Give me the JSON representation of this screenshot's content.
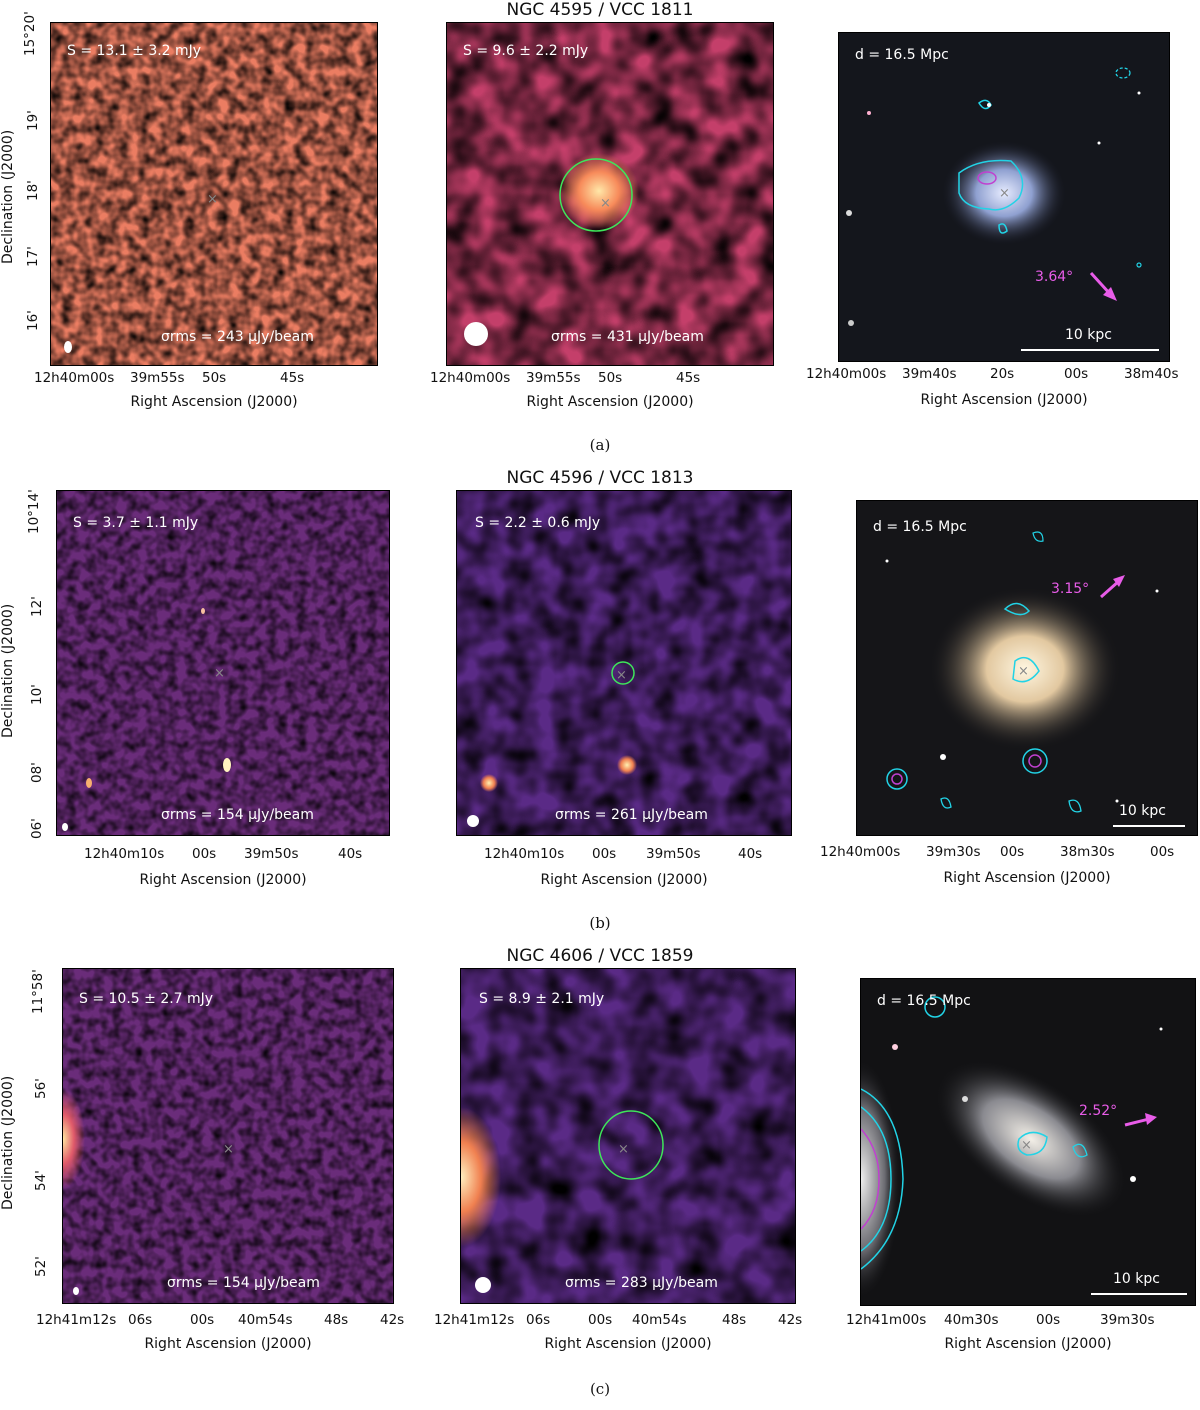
{
  "rows": [
    {
      "title": "NGC 4595 / VCC 1811",
      "caption": "(a)",
      "left": {
        "flux": "S = 13.1 ± 3.2 mJy",
        "rms": "σrms = 243 μJy/beam",
        "xticks": [
          "12h40m00s",
          "39m55s",
          "50s",
          "45s"
        ]
      },
      "mid": {
        "flux": "S = 9.6 ± 2.2 mJy",
        "rms": "σrms = 431 μJy/beam",
        "xticks": [
          "12h40m00s",
          "39m55s",
          "50s",
          "45s"
        ]
      },
      "right": {
        "distance": "d = 16.5 Mpc",
        "angle": "3.64°",
        "scalebar": "10 kpc",
        "xticks": [
          "12h40m00s",
          "39m40s",
          "20s",
          "00s",
          "38m40s"
        ]
      },
      "yticks": [
        "15°20'",
        "19'",
        "18'",
        "17'",
        "16'"
      ]
    },
    {
      "title": "NGC 4596 / VCC 1813",
      "caption": "(b)",
      "left": {
        "flux": "S = 3.7 ± 1.1 mJy",
        "rms": "σrms = 154 μJy/beam",
        "xticks": [
          "12h40m10s",
          "00s",
          "39m50s",
          "40s"
        ]
      },
      "mid": {
        "flux": "S = 2.2 ± 0.6 mJy",
        "rms": "σrms = 261 μJy/beam",
        "xticks": [
          "12h40m10s",
          "00s",
          "39m50s",
          "40s"
        ]
      },
      "right": {
        "distance": "d = 16.5 Mpc",
        "angle": "3.15°",
        "scalebar": "10 kpc",
        "xticks": [
          "12h40m00s",
          "39m30s",
          "00s",
          "38m30s",
          "00s"
        ]
      },
      "yticks": [
        "10°14'",
        "12'",
        "10'",
        "08'",
        "06'"
      ]
    },
    {
      "title": "NGC 4606 / VCC 1859",
      "caption": "(c)",
      "left": {
        "flux": "S = 10.5 ± 2.7 mJy",
        "rms": "σrms = 154 μJy/beam",
        "xticks": [
          "12h41m12s",
          "06s",
          "00s",
          "40m54s",
          "48s",
          "42s"
        ]
      },
      "mid": {
        "flux": "S = 8.9 ± 2.1 mJy",
        "rms": "σrms = 283 μJy/beam",
        "xticks": [
          "12h41m12s",
          "06s",
          "00s",
          "40m54s",
          "48s",
          "42s"
        ]
      },
      "right": {
        "distance": "d = 16.5 Mpc",
        "angle": "2.52°",
        "scalebar": "10 kpc",
        "xticks": [
          "12h41m00s",
          "40m30s",
          "00s",
          "39m30s"
        ]
      },
      "yticks": [
        "11°58'",
        "56'",
        "54'",
        "52'"
      ]
    }
  ],
  "axis": {
    "xlabel": "Right Ascension (J2000)",
    "ylabel": "Declination (J2000)"
  },
  "colors": {
    "magma_bg": "#2a0a3a",
    "contour": "#22d3e6",
    "aperture": "#3ee65a",
    "arrow": "#e85ce8"
  }
}
